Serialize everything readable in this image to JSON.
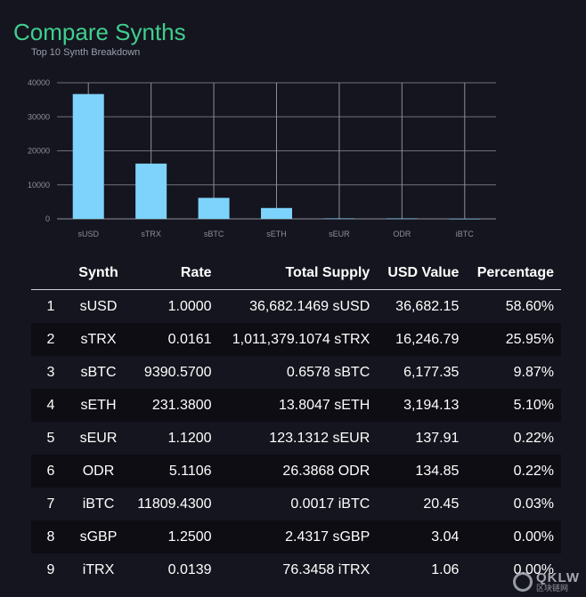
{
  "page": {
    "title": "Compare Synths"
  },
  "chart_data": {
    "type": "bar",
    "title": "Top 10 Synth Breakdown",
    "categories": [
      "sUSD",
      "sTRX",
      "sBTC",
      "sETH",
      "sEUR",
      "ODR",
      "iBTC"
    ],
    "values": [
      36682.15,
      16246.79,
      6177.35,
      3194.13,
      137.91,
      134.85,
      20.45
    ],
    "yticks": [
      0,
      10000,
      20000,
      30000,
      40000
    ],
    "ylim": [
      0,
      40000
    ],
    "grid": true,
    "bar_color": "#7dd3fc"
  },
  "table": {
    "headers": {
      "synth": "Synth",
      "rate": "Rate",
      "total_supply": "Total Supply",
      "usd_value": "USD Value",
      "percentage": "Percentage"
    },
    "rows": [
      {
        "idx": "1",
        "synth": "sUSD",
        "rate": "1.0000",
        "total_supply": "36,682.1469 sUSD",
        "usd_value": "36,682.15",
        "percentage": "58.60%"
      },
      {
        "idx": "2",
        "synth": "sTRX",
        "rate": "0.0161",
        "total_supply": "1,011,379.1074 sTRX",
        "usd_value": "16,246.79",
        "percentage": "25.95%"
      },
      {
        "idx": "3",
        "synth": "sBTC",
        "rate": "9390.5700",
        "total_supply": "0.6578 sBTC",
        "usd_value": "6,177.35",
        "percentage": "9.87%"
      },
      {
        "idx": "4",
        "synth": "sETH",
        "rate": "231.3800",
        "total_supply": "13.8047 sETH",
        "usd_value": "3,194.13",
        "percentage": "5.10%"
      },
      {
        "idx": "5",
        "synth": "sEUR",
        "rate": "1.1200",
        "total_supply": "123.1312 sEUR",
        "usd_value": "137.91",
        "percentage": "0.22%"
      },
      {
        "idx": "6",
        "synth": "ODR",
        "rate": "5.1106",
        "total_supply": "26.3868 ODR",
        "usd_value": "134.85",
        "percentage": "0.22%"
      },
      {
        "idx": "7",
        "synth": "iBTC",
        "rate": "11809.4300",
        "total_supply": "0.0017 iBTC",
        "usd_value": "20.45",
        "percentage": "0.03%"
      },
      {
        "idx": "8",
        "synth": "sGBP",
        "rate": "1.2500",
        "total_supply": "2.4317 sGBP",
        "usd_value": "3.04",
        "percentage": "0.00%"
      },
      {
        "idx": "9",
        "synth": "iTRX",
        "rate": "0.0139",
        "total_supply": "76.3458 iTRX",
        "usd_value": "1.06",
        "percentage": "0.00%"
      }
    ]
  },
  "watermark": {
    "main": "QKLW",
    "sub": "区块链网"
  }
}
